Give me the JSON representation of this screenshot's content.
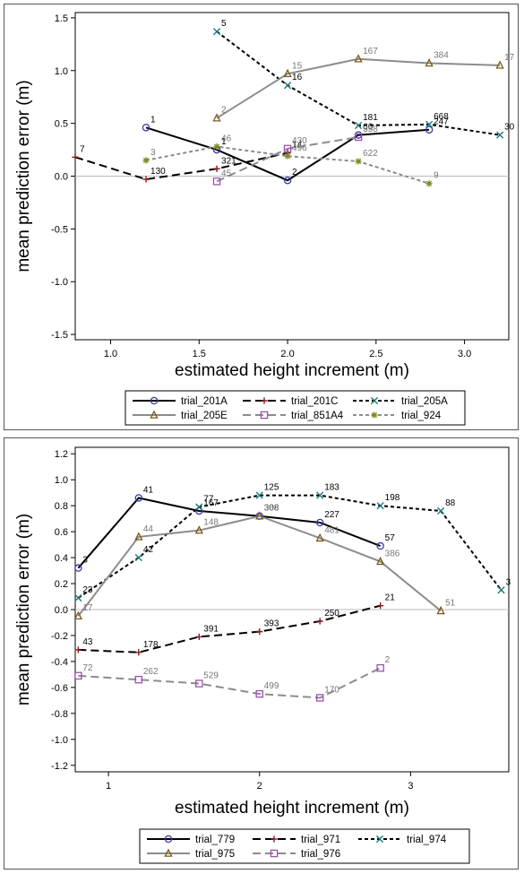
{
  "chart_data": [
    {
      "type": "line",
      "xlabel": "estimated height increment (m)",
      "ylabel": "mean prediction error (m)",
      "xlim": [
        0.8,
        3.25
      ],
      "ylim": [
        -1.55,
        1.55
      ],
      "xticks": [
        "1.0",
        "1.5",
        "2.0",
        "2.5",
        "3.0"
      ],
      "xtick_values": [
        1.0,
        1.5,
        2.0,
        2.5,
        3.0
      ],
      "yticks": [
        "-1.5",
        "-1.0",
        "-0.5",
        "0.0",
        "0.5",
        "1.0",
        "1.5"
      ],
      "ytick_values": [
        -1.5,
        -1.0,
        -0.5,
        0.0,
        0.5,
        1.0,
        1.5
      ],
      "reference_line": 0,
      "legend_position": "bottom",
      "series": [
        {
          "name": "trial_201A",
          "color": "#000000",
          "dash": "solid",
          "marker": "circle",
          "marker_color": "#3a3aa8",
          "label_color": "#000000",
          "points": [
            [
              1.2,
              0.46,
              "1"
            ],
            [
              1.6,
              0.25,
              "1"
            ],
            [
              2.0,
              -0.04,
              "2"
            ],
            [
              2.4,
              0.39,
              "66"
            ],
            [
              2.8,
              0.44,
              "247"
            ]
          ]
        },
        {
          "name": "trial_201C",
          "color": "#000000",
          "dash": "long",
          "marker": "plus",
          "marker_color": "#8b1a1a",
          "label_color": "#000000",
          "points": [
            [
              0.8,
              0.18,
              "7"
            ],
            [
              1.2,
              -0.03,
              "130"
            ],
            [
              1.6,
              0.07,
              "321"
            ],
            [
              2.0,
              0.22,
              "14"
            ]
          ]
        },
        {
          "name": "trial_205A",
          "color": "#000000",
          "dash": "short",
          "marker": "x",
          "marker_color": "#1a7a7a",
          "label_color": "#000000",
          "points": [
            [
              1.6,
              1.37,
              "5"
            ],
            [
              2.0,
              0.86,
              "16"
            ],
            [
              2.4,
              0.48,
              "181"
            ],
            [
              2.8,
              0.49,
              "668"
            ],
            [
              3.2,
              0.39,
              "30"
            ]
          ]
        },
        {
          "name": "trial_205E",
          "color": "#8c8c8c",
          "dash": "solid",
          "marker": "triangle",
          "marker_color": "#7a5a1a",
          "label_color": "#777777",
          "points": [
            [
              1.6,
              0.55,
              "2"
            ],
            [
              2.0,
              0.97,
              "15"
            ],
            [
              2.4,
              1.11,
              "167"
            ],
            [
              2.8,
              1.07,
              "384"
            ],
            [
              3.2,
              1.05,
              "17"
            ]
          ]
        },
        {
          "name": "trial_851A4",
          "color": "#8c8c8c",
          "dash": "long",
          "marker": "square",
          "marker_color": "#a050b0",
          "label_color": "#777777",
          "points": [
            [
              1.6,
              -0.05,
              "45"
            ],
            [
              2.0,
              0.26,
              "430"
            ],
            [
              2.4,
              0.37,
              "358"
            ]
          ]
        },
        {
          "name": "trial_924",
          "color": "#8c8c8c",
          "dash": "short",
          "marker": "star",
          "marker_color": "#7a8a1a",
          "label_color": "#777777",
          "points": [
            [
              1.2,
              0.15,
              "3"
            ],
            [
              1.6,
              0.28,
              "46"
            ],
            [
              2.0,
              0.19,
              "496"
            ],
            [
              2.4,
              0.14,
              "622"
            ],
            [
              2.8,
              -0.07,
              "9"
            ]
          ]
        }
      ]
    },
    {
      "type": "line",
      "xlabel": "estimated height increment (m)",
      "ylabel": "mean prediction error (m)",
      "xlim": [
        0.78,
        3.65
      ],
      "ylim": [
        -1.25,
        1.25
      ],
      "xticks": [
        "1",
        "2",
        "3"
      ],
      "xtick_values": [
        1,
        2,
        3
      ],
      "yticks": [
        "-1.2",
        "-1.0",
        "-0.8",
        "-0.6",
        "-0.4",
        "-0.2",
        "0.0",
        "0.2",
        "0.4",
        "0.6",
        "0.8",
        "1.0",
        "1.2"
      ],
      "ytick_values": [
        -1.2,
        -1.0,
        -0.8,
        -0.6,
        -0.4,
        -0.2,
        0.0,
        0.2,
        0.4,
        0.6,
        0.8,
        1.0,
        1.2
      ],
      "reference_line": 0,
      "legend_position": "bottom",
      "series": [
        {
          "name": "trial_779",
          "color": "#000000",
          "dash": "solid",
          "marker": "circle",
          "marker_color": "#3a3aa8",
          "label_color": "#000000",
          "points": [
            [
              0.8,
              0.32,
              "3"
            ],
            [
              1.2,
              0.86,
              "41"
            ],
            [
              1.6,
              0.76,
              "167"
            ],
            [
              2.0,
              0.72,
              "308"
            ],
            [
              2.4,
              0.67,
              "227"
            ],
            [
              2.8,
              0.49,
              "57"
            ]
          ]
        },
        {
          "name": "trial_971",
          "color": "#000000",
          "dash": "long",
          "marker": "plus",
          "marker_color": "#8b1a1a",
          "label_color": "#000000",
          "points": [
            [
              0.8,
              -0.31,
              "43"
            ],
            [
              1.2,
              -0.33,
              "178"
            ],
            [
              1.6,
              -0.21,
              "391"
            ],
            [
              2.0,
              -0.17,
              "393"
            ],
            [
              2.4,
              -0.09,
              "250"
            ],
            [
              2.8,
              0.03,
              "21"
            ]
          ]
        },
        {
          "name": "trial_974",
          "color": "#000000",
          "dash": "short",
          "marker": "x",
          "marker_color": "#1a7a7a",
          "label_color": "#000000",
          "points": [
            [
              0.8,
              0.09,
              "23"
            ],
            [
              1.2,
              0.4,
              "42"
            ],
            [
              1.6,
              0.79,
              "77"
            ],
            [
              2.0,
              0.88,
              "125"
            ],
            [
              2.4,
              0.88,
              "183"
            ],
            [
              2.8,
              0.8,
              "198"
            ],
            [
              3.2,
              0.76,
              "88"
            ],
            [
              3.6,
              0.15,
              "3"
            ]
          ]
        },
        {
          "name": "trial_975",
          "color": "#8c8c8c",
          "dash": "solid",
          "marker": "triangle",
          "marker_color": "#7a5a1a",
          "label_color": "#777777",
          "points": [
            [
              0.8,
              -0.05,
              "17"
            ],
            [
              1.2,
              0.56,
              "44"
            ],
            [
              1.6,
              0.61,
              "148"
            ],
            [
              2.0,
              0.72,
              "363"
            ],
            [
              2.4,
              0.55,
              "481"
            ],
            [
              2.8,
              0.37,
              "386"
            ],
            [
              3.2,
              -0.01,
              "51"
            ]
          ]
        },
        {
          "name": "trial_976",
          "color": "#8c8c8c",
          "dash": "long",
          "marker": "square",
          "marker_color": "#a050b0",
          "label_color": "#777777",
          "points": [
            [
              0.8,
              -0.51,
              "72"
            ],
            [
              1.2,
              -0.54,
              "262"
            ],
            [
              1.6,
              -0.57,
              "529"
            ],
            [
              2.0,
              -0.65,
              "499"
            ],
            [
              2.4,
              -0.68,
              "170"
            ],
            [
              2.8,
              -0.45,
              "2"
            ]
          ]
        }
      ]
    }
  ]
}
